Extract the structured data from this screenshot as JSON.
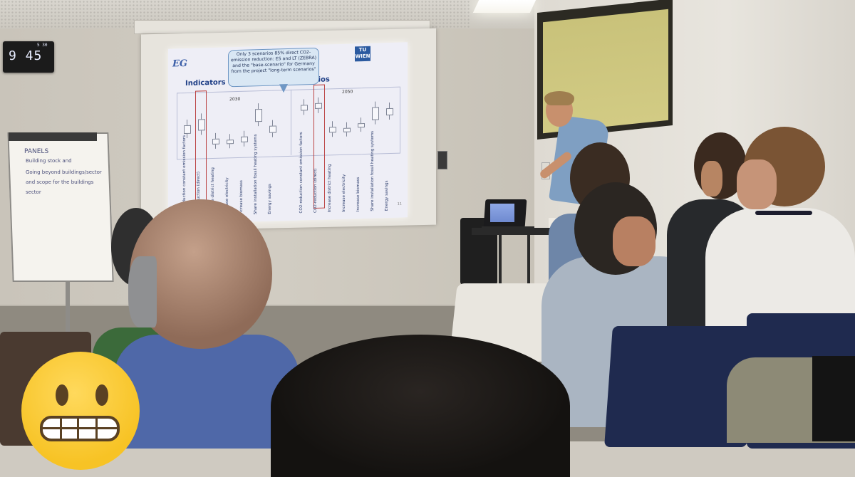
{
  "clock": {
    "time": "9 45",
    "seconds": "5 30"
  },
  "slide": {
    "title": "Indicators o",
    "title_tail": "enarios",
    "callout": "Only 3 scenarios 85% direct CO2-emission reduction: ES and LT (ZEBRA) and the \"base-scenario\" for Germany from the project \"long-term scenarios\"",
    "tu_logo": "TU WIEN",
    "years": [
      "2030",
      "2050"
    ],
    "categories": [
      "CO2-reduction constant emission factors",
      "CO2-reduction (direct)",
      "Increase district heating",
      "Increase electricity",
      "Increase biomass",
      "Share installation fossil heating systems",
      "Energy savings"
    ],
    "page_number": "11"
  },
  "flipchart": {
    "heading": "PANELS",
    "lines": [
      "Building stock and",
      "Going beyond buildings/sector",
      "and scope for the buildings",
      "sector"
    ]
  }
}
